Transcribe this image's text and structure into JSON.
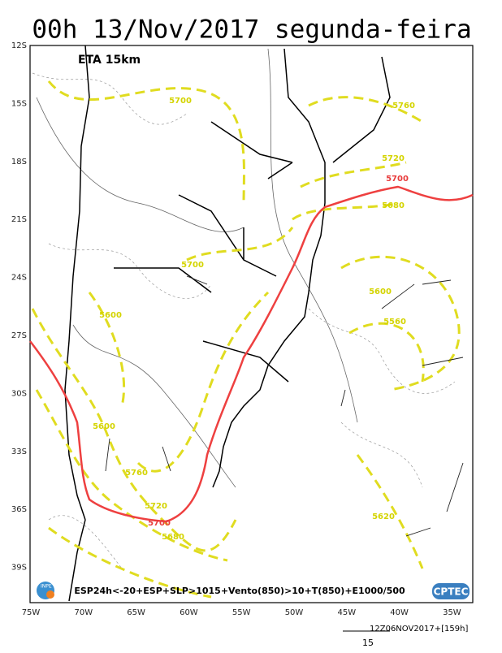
{
  "header": {
    "title": "00h 13/Nov/2017 segunda-feira"
  },
  "map": {
    "model": "ETA 15km",
    "lat_labels": [
      "12S",
      "15S",
      "18S",
      "21S",
      "24S",
      "27S",
      "30S",
      "33S",
      "36S",
      "39S"
    ],
    "lon_labels": [
      "75W",
      "70W",
      "65W",
      "60W",
      "55W",
      "50W",
      "45W",
      "40W",
      "35W"
    ],
    "contour_labels": [
      5700,
      5760,
      5720,
      5700,
      5680,
      5700,
      5600,
      5560,
      5600,
      5600,
      5760,
      5720,
      5700,
      5680,
      5620
    ],
    "caption": "ESP24h<-20+ESP+SLP>1015+Vento(850)>10+T(850)+E1000/500",
    "logos": [
      "INPE",
      "CPTEC"
    ]
  },
  "footer": {
    "run": "12Z06NOV2017+[159h]",
    "vector_scale": "15"
  }
}
